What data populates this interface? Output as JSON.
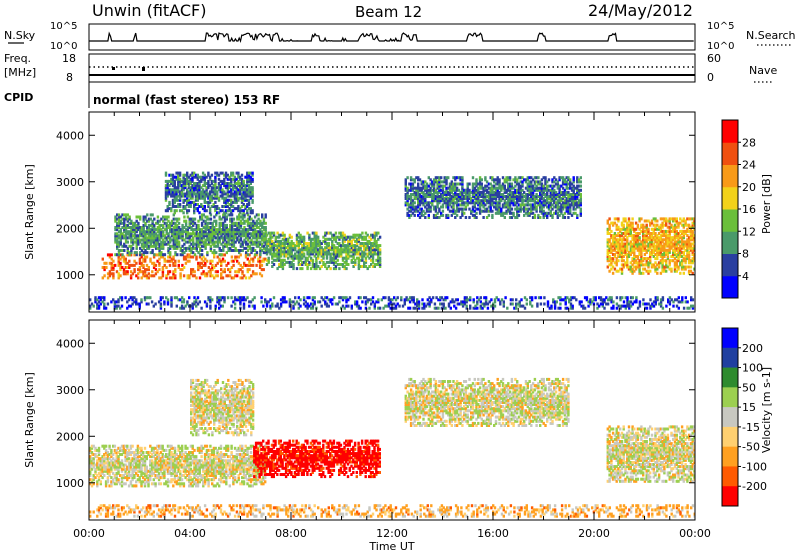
{
  "header": {
    "station": "Unwin (fitACF)",
    "beam": "Beam 12",
    "date": "24/May/2012"
  },
  "nsky_panel": {
    "left_label": "N.Sky",
    "left_ticks": [
      "10^5",
      "10^0"
    ],
    "right_label": "N.Search",
    "right_ticks": [
      "10^5",
      "10^0"
    ]
  },
  "freq_panel": {
    "left_label_1": "Freq.",
    "left_label_2": "[MHz]",
    "left_ticks": [
      "18",
      "8"
    ],
    "right_label": "Nave",
    "right_ticks": [
      "60",
      "0"
    ]
  },
  "cpid": {
    "label": "CPID",
    "text": "normal (fast stereo) 153 RF"
  },
  "colors": {
    "power_scale": [
      "#0000ff",
      "#2a3fa0",
      "#4a9a6a",
      "#6bbf3a",
      "#f2d21a",
      "#f89a18",
      "#f05010",
      "#ff0000"
    ],
    "velocity_scale": [
      "#ff0000",
      "#ff5a00",
      "#ffa020",
      "#ffd070",
      "#c8c8c0",
      "#9ccf50",
      "#2e8b2e",
      "#2040a0",
      "#0000ff"
    ],
    "ground_scatter": "#c8c8c0"
  },
  "chart_data": [
    {
      "type": "heatmap",
      "parameter": "power",
      "ylabel": "Slant Range [km]",
      "xlabel": "",
      "ylim": [
        200,
        4500
      ],
      "xlim": [
        "00:00",
        "24:00"
      ],
      "y_ticks": [
        "1000",
        "2000",
        "3000",
        "4000"
      ],
      "colorbar": {
        "label": "Power [dB]",
        "ticks": [
          "28",
          "24",
          "20",
          "16",
          "12",
          "8",
          "4"
        ],
        "range": [
          0,
          32
        ]
      },
      "regions": [
        {
          "t_start": 0.5,
          "t_end": 7.0,
          "range_min": 900,
          "range_max": 1400,
          "power_db": 24
        },
        {
          "t_start": 1.0,
          "t_end": 7.0,
          "range_min": 1400,
          "range_max": 2300,
          "power_db": 10
        },
        {
          "t_start": 3.0,
          "t_end": 6.5,
          "range_min": 2300,
          "range_max": 3200,
          "power_db": 8
        },
        {
          "t_start": 7.0,
          "t_end": 11.5,
          "range_min": 1100,
          "range_max": 1900,
          "power_db": 12
        },
        {
          "t_start": 12.5,
          "t_end": 19.5,
          "range_min": 2200,
          "range_max": 3100,
          "power_db": 8
        },
        {
          "t_start": 20.5,
          "t_end": 24.0,
          "range_min": 1000,
          "range_max": 2200,
          "power_db": 20
        },
        {
          "t_start": 0.0,
          "t_end": 24.0,
          "range_min": 250,
          "range_max": 500,
          "power_db": 6
        }
      ]
    },
    {
      "type": "heatmap",
      "parameter": "velocity",
      "ylabel": "Slant Range [km]",
      "xlabel": "Time UT",
      "ylim": [
        200,
        4500
      ],
      "xlim": [
        "00:00",
        "24:00"
      ],
      "y_ticks": [
        "1000",
        "2000",
        "3000",
        "4000"
      ],
      "x_ticks": [
        "00:00",
        "04:00",
        "08:00",
        "12:00",
        "16:00",
        "20:00",
        "00:00"
      ],
      "colorbar": {
        "label": "Velocity [m s-1]",
        "ticks": [
          "200",
          "100",
          "50",
          "15",
          "-15",
          "-50",
          "-100",
          "-200"
        ],
        "range": [
          -250,
          250
        ]
      },
      "regions": [
        {
          "t_start": 0.0,
          "t_end": 7.0,
          "range_min": 900,
          "range_max": 1800,
          "velocity": 0
        },
        {
          "t_start": 4.0,
          "t_end": 6.5,
          "range_min": 2000,
          "range_max": 3200,
          "velocity": 0
        },
        {
          "t_start": 6.5,
          "t_end": 11.5,
          "range_min": 1100,
          "range_max": 1900,
          "velocity": -180
        },
        {
          "t_start": 12.5,
          "t_end": 19.0,
          "range_min": 2200,
          "range_max": 3200,
          "velocity": 0
        },
        {
          "t_start": 20.5,
          "t_end": 24.0,
          "range_min": 1000,
          "range_max": 2200,
          "velocity": 0
        },
        {
          "t_start": 0.0,
          "t_end": 24.0,
          "range_min": 250,
          "range_max": 500,
          "velocity": -40
        }
      ]
    }
  ]
}
